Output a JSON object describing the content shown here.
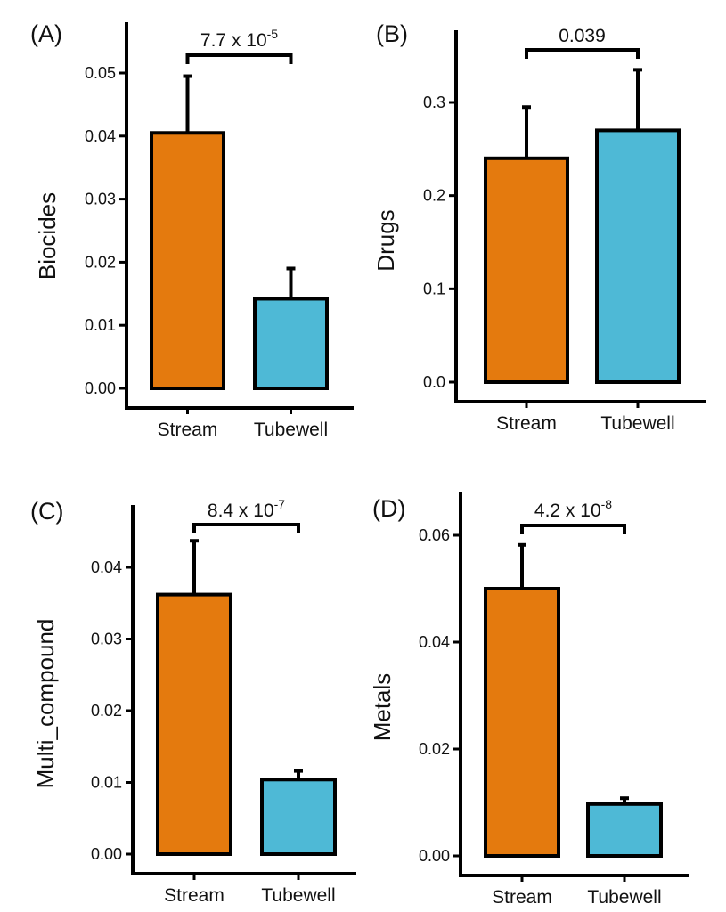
{
  "chart_data": [
    {
      "type": "bar",
      "panel": "(A)",
      "ylabel": "Biocides",
      "xlabel": "",
      "categories": [
        "Stream",
        "Tubewell"
      ],
      "values": [
        0.0405,
        0.0142
      ],
      "error_upper": [
        0.0495,
        0.019
      ],
      "ylim": [
        0,
        0.056
      ],
      "yticks": [
        0.0,
        0.01,
        0.02,
        0.03,
        0.04,
        0.05
      ],
      "ytick_labels": [
        "0.00",
        "0.01",
        "0.02",
        "0.03",
        "0.04",
        "0.05"
      ],
      "significance": {
        "base": "7.7 x 10",
        "exp": "-5"
      },
      "colors": [
        "#e47a0e",
        "#4eb9d6"
      ],
      "grid": false
    },
    {
      "type": "bar",
      "panel": "(B)",
      "ylabel": "Drugs",
      "xlabel": "",
      "categories": [
        "Stream",
        "Tubewell"
      ],
      "values": [
        0.24,
        0.27
      ],
      "error_upper": [
        0.295,
        0.335
      ],
      "ylim": [
        0,
        0.37
      ],
      "yticks": [
        0.0,
        0.1,
        0.2,
        0.3
      ],
      "ytick_labels": [
        "0.0",
        "0.1",
        "0.2",
        "0.3"
      ],
      "significance": {
        "base": "0.039",
        "exp": ""
      },
      "colors": [
        "#e47a0e",
        "#4eb9d6"
      ],
      "grid": false
    },
    {
      "type": "bar",
      "panel": "(C)",
      "ylabel": "Multi_compound",
      "xlabel": "",
      "categories": [
        "Stream",
        "Tubewell"
      ],
      "values": [
        0.0362,
        0.0104
      ],
      "error_upper": [
        0.0437,
        0.0116
      ],
      "ylim": [
        0,
        0.049
      ],
      "yticks": [
        0.0,
        0.01,
        0.02,
        0.03,
        0.04
      ],
      "ytick_labels": [
        "0.00",
        "0.01",
        "0.02",
        "0.03",
        "0.04"
      ],
      "significance": {
        "base": "8.4 x 10",
        "exp": "-7"
      },
      "colors": [
        "#e47a0e",
        "#4eb9d6"
      ],
      "grid": false
    },
    {
      "type": "bar",
      "panel": "(D)",
      "ylabel": "Metals",
      "xlabel": "",
      "categories": [
        "Stream",
        "Tubewell"
      ],
      "values": [
        0.05,
        0.0097
      ],
      "error_upper": [
        0.0582,
        0.0108
      ],
      "ylim": [
        0,
        0.068
      ],
      "yticks": [
        0.0,
        0.02,
        0.04,
        0.06
      ],
      "ytick_labels": [
        "0.00",
        "0.02",
        "0.04",
        "0.06"
      ],
      "significance": {
        "base": "4.2 x 10",
        "exp": "-8"
      },
      "colors": [
        "#e47a0e",
        "#4eb9d6"
      ],
      "grid": false
    }
  ]
}
